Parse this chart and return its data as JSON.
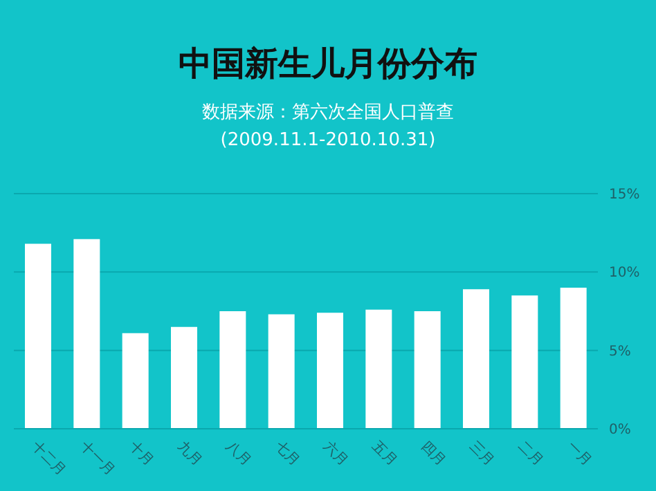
{
  "chart_data": {
    "type": "bar",
    "title": "中国新生儿月份分布",
    "subtitle": "数据来源：第六次全国人口普查",
    "annotations": [
      "(2009.11.1-2010.10.31)"
    ],
    "categories": [
      "十二月",
      "十一月",
      "十月",
      "九月",
      "八月",
      "七月",
      "六月",
      "五月",
      "四月",
      "三月",
      "二月",
      "一月"
    ],
    "values": [
      11.8,
      12.1,
      6.1,
      6.5,
      7.5,
      7.3,
      7.4,
      7.6,
      7.5,
      8.9,
      8.5,
      9.0
    ],
    "color": "#ffffff",
    "ylim": [
      0,
      15
    ],
    "yticks": [
      {
        "value": 0,
        "label": "0%"
      },
      {
        "value": 5,
        "label": "5%"
      },
      {
        "value": 10,
        "label": "10%"
      },
      {
        "value": 15,
        "label": "15%"
      }
    ],
    "grid": "y"
  }
}
